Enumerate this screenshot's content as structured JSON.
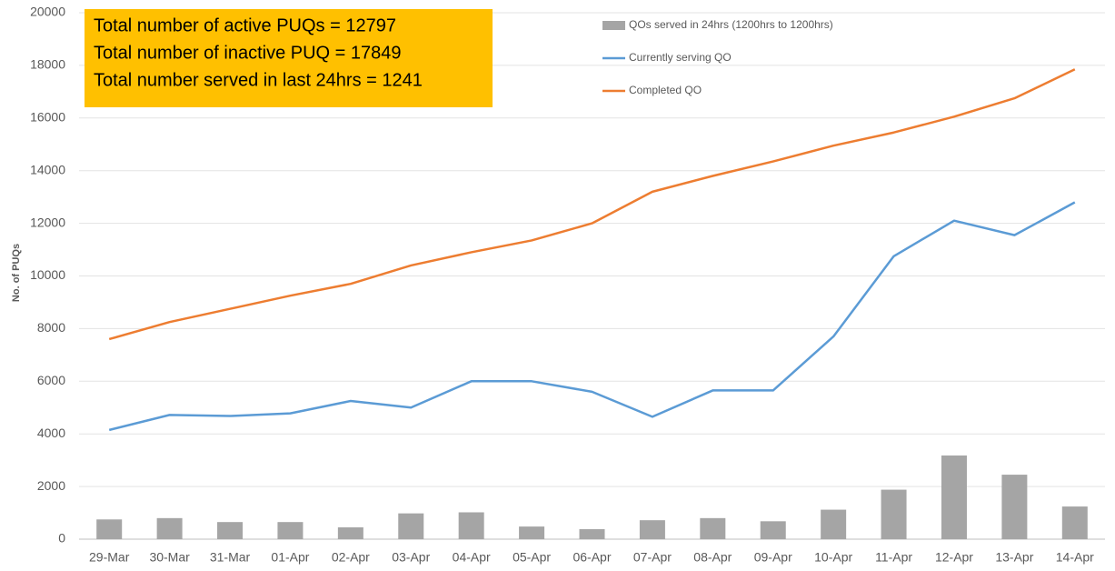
{
  "chart_data": {
    "type": "combo",
    "ylabel": "No. of PUQs",
    "annotations": [
      "Total number of active PUQs = 12797",
      "Total number of inactive PUQ = 17849",
      "Total number served in last 24hrs = 1241"
    ],
    "categories": [
      "29-Mar",
      "30-Mar",
      "31-Mar",
      "01-Apr",
      "02-Apr",
      "03-Apr",
      "04-Apr",
      "05-Apr",
      "06-Apr",
      "07-Apr",
      "08-Apr",
      "09-Apr",
      "10-Apr",
      "11-Apr",
      "12-Apr",
      "13-Apr",
      "14-Apr"
    ],
    "series": [
      {
        "name": "QOs served in 24hrs (1200hrs to 1200hrs)",
        "kind": "bar",
        "color": "#a5a5a5",
        "values": [
          750,
          800,
          650,
          650,
          450,
          980,
          1020,
          480,
          380,
          720,
          800,
          680,
          1120,
          1880,
          3180,
          2450,
          1241
        ]
      },
      {
        "name": "Currently serving QO",
        "kind": "line",
        "color": "#5b9bd5",
        "values": [
          4150,
          4720,
          4680,
          4780,
          5250,
          5000,
          6000,
          6000,
          5600,
          4650,
          5650,
          5650,
          7700,
          10750,
          12100,
          11550,
          12797
        ]
      },
      {
        "name": "Completed QO",
        "kind": "line",
        "color": "#ed7d31",
        "values": [
          7600,
          8250,
          8750,
          9250,
          9700,
          10400,
          10900,
          11350,
          12000,
          13200,
          13800,
          14350,
          14950,
          15450,
          16050,
          16750,
          17849
        ]
      }
    ],
    "ylim": [
      0,
      20000
    ],
    "yticks": [
      0,
      2000,
      4000,
      6000,
      8000,
      10000,
      12000,
      14000,
      16000,
      18000,
      20000
    ],
    "grid": true,
    "annotation_color": "#ffc000"
  }
}
